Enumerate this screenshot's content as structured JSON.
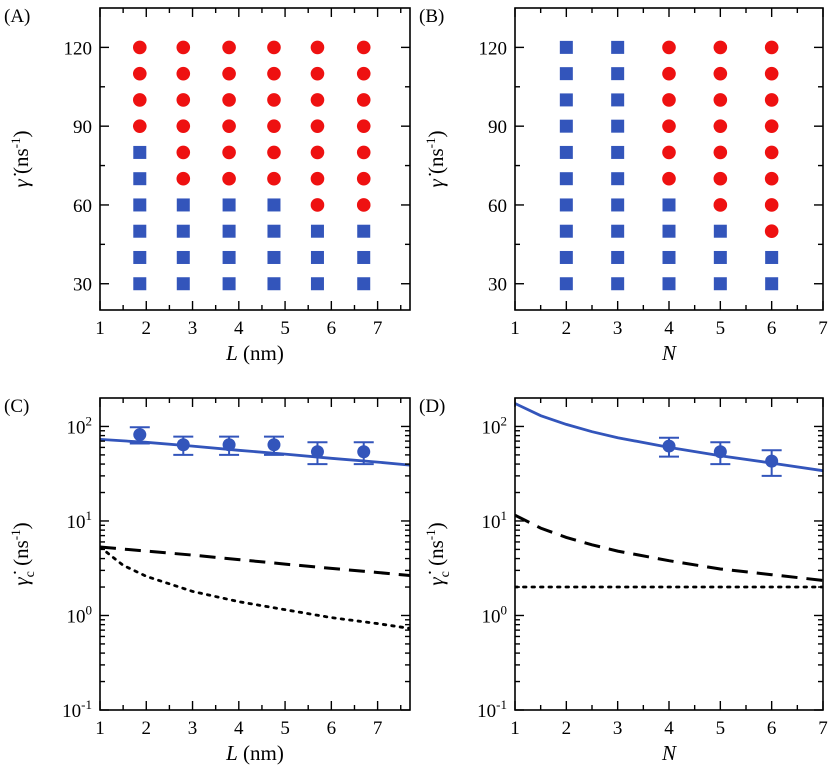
{
  "colors": {
    "stable": "#3355bb",
    "unstable": "#ee1111",
    "line": "#3355bb",
    "black": "#000000"
  },
  "chart_data": [
    {
      "id": "A",
      "type": "scatter",
      "panel_label": "(A)",
      "xlabel_var": "L",
      "xlabel_unit": "(nm)",
      "ylabel_var": "γ̇",
      "ylabel_unit": "(ns",
      "ylabel_exp": "-1",
      "ylabel_close": ")",
      "xlim": [
        1,
        7.7
      ],
      "ylim": [
        20,
        135
      ],
      "xticks": [
        1,
        2,
        3,
        4,
        5,
        6,
        7
      ],
      "yticks": [
        30,
        60,
        90,
        120
      ],
      "series": [
        {
          "name": "stable",
          "marker": "square",
          "points": [
            [
              1.86,
              30
            ],
            [
              1.86,
              40
            ],
            [
              1.86,
              50
            ],
            [
              1.86,
              60
            ],
            [
              1.86,
              70
            ],
            [
              1.86,
              80
            ],
            [
              2.8,
              30
            ],
            [
              2.8,
              40
            ],
            [
              2.8,
              50
            ],
            [
              2.8,
              60
            ],
            [
              3.79,
              30
            ],
            [
              3.79,
              40
            ],
            [
              3.79,
              50
            ],
            [
              3.79,
              60
            ],
            [
              4.76,
              30
            ],
            [
              4.76,
              40
            ],
            [
              4.76,
              50
            ],
            [
              4.76,
              60
            ],
            [
              5.7,
              30
            ],
            [
              5.7,
              40
            ],
            [
              5.7,
              50
            ],
            [
              6.7,
              30
            ],
            [
              6.7,
              40
            ],
            [
              6.7,
              50
            ]
          ]
        },
        {
          "name": "unstable",
          "marker": "circle",
          "points": [
            [
              1.86,
              90
            ],
            [
              1.86,
              100
            ],
            [
              1.86,
              110
            ],
            [
              1.86,
              120
            ],
            [
              2.8,
              70
            ],
            [
              2.8,
              80
            ],
            [
              2.8,
              90
            ],
            [
              2.8,
              100
            ],
            [
              2.8,
              110
            ],
            [
              2.8,
              120
            ],
            [
              3.79,
              70
            ],
            [
              3.79,
              80
            ],
            [
              3.79,
              90
            ],
            [
              3.79,
              100
            ],
            [
              3.79,
              110
            ],
            [
              3.79,
              120
            ],
            [
              4.76,
              70
            ],
            [
              4.76,
              80
            ],
            [
              4.76,
              90
            ],
            [
              4.76,
              100
            ],
            [
              4.76,
              110
            ],
            [
              4.76,
              120
            ],
            [
              5.7,
              60
            ],
            [
              5.7,
              70
            ],
            [
              5.7,
              80
            ],
            [
              5.7,
              90
            ],
            [
              5.7,
              100
            ],
            [
              5.7,
              110
            ],
            [
              5.7,
              120
            ],
            [
              6.7,
              60
            ],
            [
              6.7,
              70
            ],
            [
              6.7,
              80
            ],
            [
              6.7,
              90
            ],
            [
              6.7,
              100
            ],
            [
              6.7,
              110
            ],
            [
              6.7,
              120
            ]
          ]
        }
      ]
    },
    {
      "id": "B",
      "type": "scatter",
      "panel_label": "(B)",
      "xlabel_var": "N",
      "xlabel_unit": "",
      "ylabel_var": "γ̇",
      "ylabel_unit": "(ns",
      "ylabel_exp": "-1",
      "ylabel_close": ")",
      "xlim": [
        1,
        7
      ],
      "ylim": [
        20,
        135
      ],
      "xticks": [
        1,
        2,
        3,
        4,
        5,
        6,
        7
      ],
      "yticks": [
        30,
        60,
        90,
        120
      ],
      "series": [
        {
          "name": "stable",
          "marker": "square",
          "points": [
            [
              2,
              30
            ],
            [
              2,
              40
            ],
            [
              2,
              50
            ],
            [
              2,
              60
            ],
            [
              2,
              70
            ],
            [
              2,
              80
            ],
            [
              2,
              90
            ],
            [
              2,
              100
            ],
            [
              2,
              110
            ],
            [
              2,
              120
            ],
            [
              3,
              30
            ],
            [
              3,
              40
            ],
            [
              3,
              50
            ],
            [
              3,
              60
            ],
            [
              3,
              70
            ],
            [
              3,
              80
            ],
            [
              3,
              90
            ],
            [
              3,
              100
            ],
            [
              3,
              110
            ],
            [
              3,
              120
            ],
            [
              4,
              30
            ],
            [
              4,
              40
            ],
            [
              4,
              50
            ],
            [
              4,
              60
            ],
            [
              5,
              30
            ],
            [
              5,
              40
            ],
            [
              5,
              50
            ],
            [
              6,
              30
            ],
            [
              6,
              40
            ]
          ]
        },
        {
          "name": "unstable",
          "marker": "circle",
          "points": [
            [
              4,
              70
            ],
            [
              4,
              80
            ],
            [
              4,
              90
            ],
            [
              4,
              100
            ],
            [
              4,
              110
            ],
            [
              4,
              120
            ],
            [
              5,
              60
            ],
            [
              5,
              70
            ],
            [
              5,
              80
            ],
            [
              5,
              90
            ],
            [
              5,
              100
            ],
            [
              5,
              110
            ],
            [
              5,
              120
            ],
            [
              6,
              50
            ],
            [
              6,
              60
            ],
            [
              6,
              70
            ],
            [
              6,
              80
            ],
            [
              6,
              90
            ],
            [
              6,
              100
            ],
            [
              6,
              110
            ],
            [
              6,
              120
            ]
          ]
        }
      ]
    },
    {
      "id": "C",
      "type": "line",
      "yscale": "log",
      "panel_label": "(C)",
      "xlabel_var": "L",
      "xlabel_unit": "(nm)",
      "ylabel_var": "γ̇",
      "ylabel_sub": "c",
      "ylabel_unit": "(ns",
      "ylabel_exp": "-1",
      "ylabel_close": ")",
      "xlim": [
        1,
        7.7
      ],
      "ylim": [
        0.1,
        200
      ],
      "xticks": [
        1,
        2,
        3,
        4,
        5,
        6,
        7
      ],
      "ytick_labels": [
        {
          "value": 0.1,
          "base": "10",
          "exp": "-1"
        },
        {
          "value": 1,
          "base": "10",
          "exp": "0"
        },
        {
          "value": 10,
          "base": "10",
          "exp": "1"
        },
        {
          "value": 100,
          "base": "10",
          "exp": "2"
        }
      ],
      "errorbar_points": [
        {
          "x": 1.86,
          "y": 82,
          "err": 16
        },
        {
          "x": 2.8,
          "y": 64,
          "err": 14
        },
        {
          "x": 3.79,
          "y": 64,
          "err": 14
        },
        {
          "x": 4.76,
          "y": 64,
          "err": 14
        },
        {
          "x": 5.7,
          "y": 54,
          "err": 14
        },
        {
          "x": 6.7,
          "y": 54,
          "err": 14
        }
      ],
      "series": [
        {
          "name": "fit",
          "style": "solid",
          "x": [
            1,
            2,
            3,
            4,
            5,
            6,
            7,
            7.7
          ],
          "y": [
            73,
            68,
            62,
            56,
            51,
            46,
            42,
            39
          ]
        },
        {
          "name": "dashed",
          "style": "dashed",
          "x": [
            1,
            2,
            3,
            4,
            5,
            6,
            7,
            7.7
          ],
          "y": [
            5.3,
            4.8,
            4.35,
            3.9,
            3.5,
            3.15,
            2.85,
            2.65
          ]
        },
        {
          "name": "dotted",
          "style": "dotted",
          "x": [
            1,
            1.5,
            2,
            3,
            4,
            5,
            6,
            7,
            7.7
          ],
          "y": [
            5.3,
            3.4,
            2.6,
            1.8,
            1.4,
            1.15,
            0.95,
            0.82,
            0.73
          ]
        }
      ]
    },
    {
      "id": "D",
      "type": "line",
      "yscale": "log",
      "panel_label": "(D)",
      "xlabel_var": "N",
      "xlabel_unit": "",
      "ylabel_var": "γ̇",
      "ylabel_sub": "c",
      "ylabel_unit": "(ns",
      "ylabel_exp": "-1",
      "ylabel_close": ")",
      "xlim": [
        1,
        7
      ],
      "ylim": [
        0.1,
        200
      ],
      "xticks": [
        1,
        2,
        3,
        4,
        5,
        6,
        7
      ],
      "ytick_labels": [
        {
          "value": 0.1,
          "base": "10",
          "exp": "-1"
        },
        {
          "value": 1,
          "base": "10",
          "exp": "0"
        },
        {
          "value": 10,
          "base": "10",
          "exp": "1"
        },
        {
          "value": 100,
          "base": "10",
          "exp": "2"
        }
      ],
      "errorbar_points": [
        {
          "x": 4,
          "y": 62,
          "err": 14
        },
        {
          "x": 5,
          "y": 54,
          "err": 14
        },
        {
          "x": 6,
          "y": 43,
          "err": 13
        }
      ],
      "series": [
        {
          "name": "fit",
          "style": "solid",
          "x": [
            1,
            1.5,
            2,
            2.5,
            3,
            4,
            5,
            6,
            7
          ],
          "y": [
            175,
            130,
            105,
            88,
            76,
            60,
            49,
            41,
            34
          ]
        },
        {
          "name": "dashed",
          "style": "dashed",
          "x": [
            1,
            1.5,
            2,
            2.5,
            3,
            4,
            5,
            6,
            7
          ],
          "y": [
            11.5,
            8.4,
            6.7,
            5.6,
            4.8,
            3.8,
            3.1,
            2.7,
            2.35
          ]
        },
        {
          "name": "dotted",
          "style": "dotted",
          "x": [
            1,
            7
          ],
          "y": [
            2,
            2
          ]
        }
      ]
    }
  ]
}
